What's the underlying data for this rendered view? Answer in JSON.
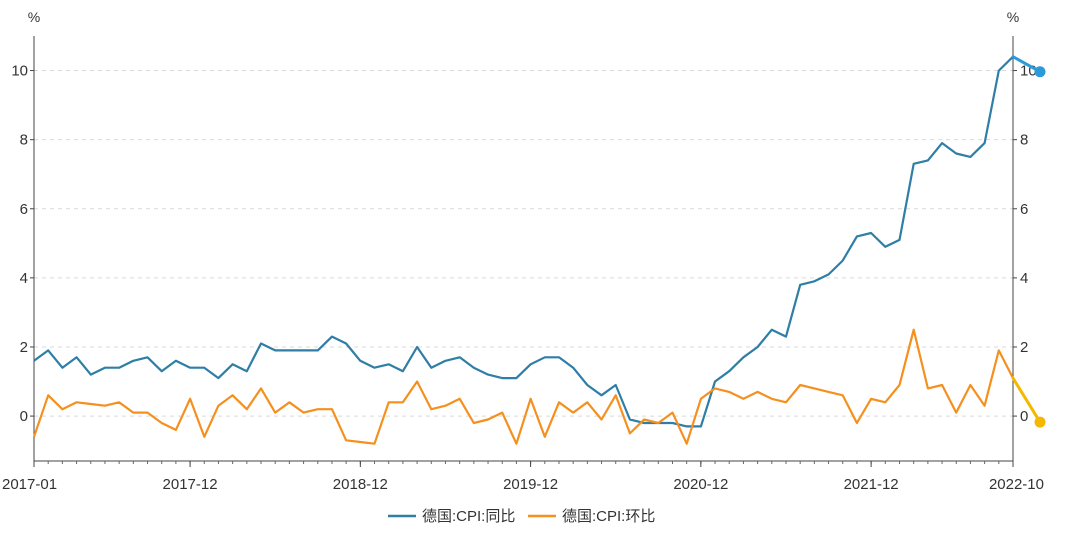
{
  "chart_data": {
    "type": "line",
    "title": "",
    "left_unit": "%",
    "right_unit": "%",
    "ylim": [
      -1.3,
      11.0
    ],
    "y_ticks": [
      0,
      2,
      4,
      6,
      8,
      10
    ],
    "y_tick_labels": [
      "0",
      "2",
      "4",
      "6",
      "8",
      "10"
    ],
    "grid": true,
    "legend": "bottom-center",
    "x_tick_labels": [
      {
        "index": 0,
        "label": "2017-01"
      },
      {
        "index": 11,
        "label": "2017-12"
      },
      {
        "index": 23,
        "label": "2018-12"
      },
      {
        "index": 35,
        "label": "2019-12"
      },
      {
        "index": 47,
        "label": "2020-12"
      },
      {
        "index": 59,
        "label": "2021-12"
      },
      {
        "index": 69,
        "label": "2022-10"
      }
    ],
    "series": [
      {
        "name": "德国:CPI:同比",
        "color": "#2e7ea6",
        "end_marker": "#2a9bd8",
        "values": [
          1.6,
          1.9,
          1.4,
          1.7,
          1.2,
          1.4,
          1.4,
          1.6,
          1.7,
          1.3,
          1.6,
          1.4,
          1.4,
          1.1,
          1.5,
          1.3,
          2.1,
          1.9,
          1.9,
          1.9,
          1.9,
          2.3,
          2.1,
          1.6,
          1.4,
          1.5,
          1.3,
          2.0,
          1.4,
          1.6,
          1.7,
          1.4,
          1.2,
          1.1,
          1.1,
          1.5,
          1.7,
          1.7,
          1.4,
          0.9,
          0.6,
          0.9,
          -0.1,
          -0.2,
          -0.2,
          -0.2,
          -0.3,
          -0.3,
          1.0,
          1.3,
          1.7,
          2.0,
          2.5,
          2.3,
          3.8,
          3.9,
          4.1,
          4.5,
          5.2,
          5.3,
          4.9,
          5.1,
          7.3,
          7.4,
          7.9,
          7.6,
          7.5,
          7.9,
          10.0,
          10.4
        ]
      },
      {
        "name": "德国:CPI:环比",
        "color": "#f5901e",
        "end_marker": "#f5b800",
        "values": [
          -0.6,
          0.6,
          0.2,
          0.4,
          0.35,
          0.3,
          0.4,
          0.1,
          0.1,
          -0.2,
          -0.4,
          0.5,
          -0.6,
          0.3,
          0.6,
          0.2,
          0.8,
          0.1,
          0.4,
          0.1,
          0.2,
          0.2,
          -0.7,
          -0.75,
          -0.8,
          0.4,
          0.4,
          1.0,
          0.2,
          0.3,
          0.5,
          -0.2,
          -0.1,
          0.1,
          -0.8,
          0.5,
          -0.6,
          0.4,
          0.1,
          0.4,
          -0.1,
          0.6,
          -0.5,
          -0.1,
          -0.2,
          0.1,
          -0.8,
          0.5,
          0.8,
          0.7,
          0.5,
          0.7,
          0.5,
          0.4,
          0.9,
          0.8,
          0.7,
          0.6,
          -0.2,
          0.5,
          0.4,
          0.9,
          2.5,
          0.8,
          0.9,
          0.1,
          0.9,
          0.3,
          1.9,
          1.1
        ]
      }
    ]
  }
}
